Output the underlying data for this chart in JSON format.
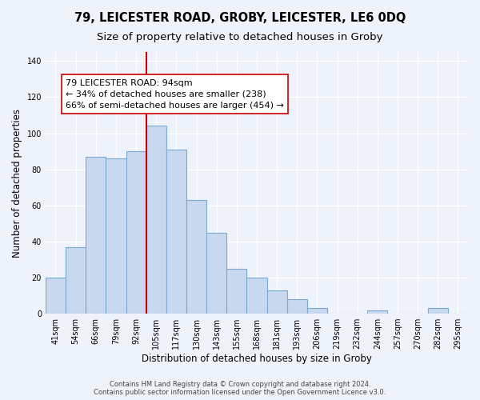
{
  "title1": "79, LEICESTER ROAD, GROBY, LEICESTER, LE6 0DQ",
  "title2": "Size of property relative to detached houses in Groby",
  "xlabel": "Distribution of detached houses by size in Groby",
  "ylabel": "Number of detached properties",
  "bar_labels": [
    "41sqm",
    "54sqm",
    "66sqm",
    "79sqm",
    "92sqm",
    "105sqm",
    "117sqm",
    "130sqm",
    "143sqm",
    "155sqm",
    "168sqm",
    "181sqm",
    "193sqm",
    "206sqm",
    "219sqm",
    "232sqm",
    "244sqm",
    "257sqm",
    "270sqm",
    "282sqm",
    "295sqm"
  ],
  "bar_values": [
    20,
    37,
    87,
    86,
    90,
    104,
    91,
    63,
    45,
    25,
    20,
    13,
    8,
    3,
    0,
    0,
    2,
    0,
    0,
    3,
    0
  ],
  "bar_color": "#c8d8ee",
  "bar_edge_color": "#7aaad0",
  "vline_x_idx": 4.5,
  "vline_color": "#cc0000",
  "annotation_line1": "79 LEICESTER ROAD: 94sqm",
  "annotation_line2": "← 34% of detached houses are smaller (238)",
  "annotation_line3": "66% of semi-detached houses are larger (454) →",
  "annotation_box_facecolor": "#ffffff",
  "annotation_box_edgecolor": "#cc0000",
  "ylim": [
    0,
    145
  ],
  "yticks": [
    0,
    20,
    40,
    60,
    80,
    100,
    120,
    140
  ],
  "footer1": "Contains HM Land Registry data © Crown copyright and database right 2024.",
  "footer2": "Contains public sector information licensed under the Open Government Licence v3.0.",
  "bg_color": "#eef2fa",
  "plot_bg_color": "#eef2fa",
  "grid_color": "#ffffff",
  "title1_fontsize": 10.5,
  "title2_fontsize": 9.5,
  "axis_label_fontsize": 8.5,
  "tick_fontsize": 7,
  "annotation_fontsize": 8,
  "footer_fontsize": 6
}
